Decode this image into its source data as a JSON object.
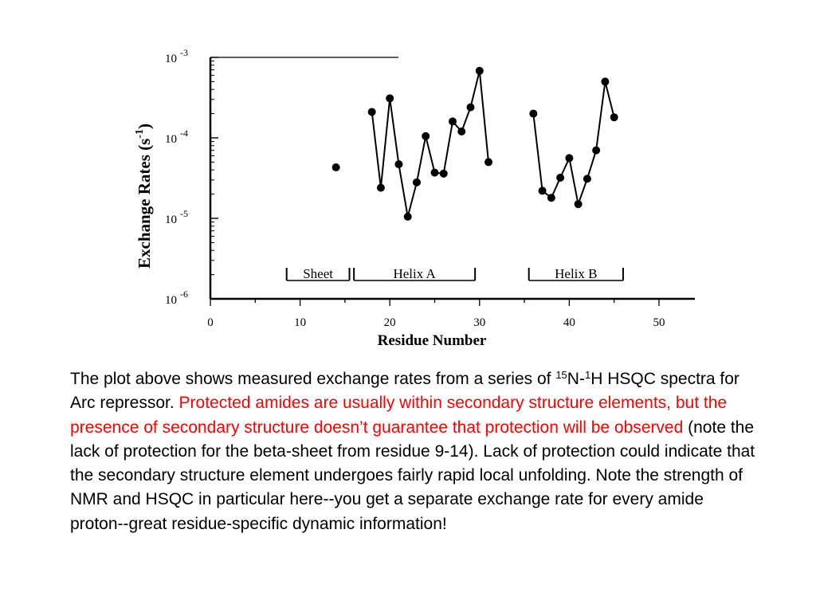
{
  "chart_data": {
    "type": "scatter",
    "ylabel": "Exchange Rates (s",
    "ylabel_sup": "-1",
    "ylabel_close": ")",
    "xlabel": "Residue Number",
    "xlim": [
      0,
      54
    ],
    "ylim": [
      1e-06,
      0.001
    ],
    "yscale": "log",
    "grid": false,
    "x_ticks": [
      0,
      10,
      20,
      30,
      40,
      50
    ],
    "y_ticks": [
      {
        "base": "10",
        "exp": "-3",
        "value": 0.001
      },
      {
        "base": "10",
        "exp": "-4",
        "value": 0.0001
      },
      {
        "base": "10",
        "exp": "-5",
        "value": 1e-05
      },
      {
        "base": "10",
        "exp": "-6",
        "value": 1e-06
      }
    ],
    "series": [
      {
        "points": [
          [
            14,
            4.3e-05
          ]
        ]
      },
      {
        "points": [
          [
            18,
            0.00021
          ],
          [
            19,
            2.4e-05
          ],
          [
            20,
            0.00031
          ],
          [
            21,
            4.7e-05
          ],
          [
            22,
            1.05e-05
          ],
          [
            23,
            2.8e-05
          ],
          [
            24,
            0.000105
          ],
          [
            25,
            3.7e-05
          ],
          [
            26,
            3.6e-05
          ],
          [
            27,
            0.00016
          ],
          [
            28,
            0.00012
          ],
          [
            29,
            0.00024
          ],
          [
            30,
            0.00068
          ],
          [
            31,
            5e-05
          ]
        ]
      },
      {
        "points": [
          [
            36,
            0.0002
          ],
          [
            37,
            2.2e-05
          ],
          [
            38,
            1.8e-05
          ],
          [
            39,
            3.2e-05
          ],
          [
            40,
            5.6e-05
          ],
          [
            41,
            1.5e-05
          ],
          [
            42,
            3.1e-05
          ],
          [
            43,
            7e-05
          ],
          [
            44,
            0.0005
          ],
          [
            45,
            0.00018
          ]
        ]
      }
    ],
    "annotations": [
      {
        "text": "Sheet",
        "from": 8.5,
        "to": 15.5
      },
      {
        "text": "Helix A",
        "from": 16,
        "to": 29.5
      },
      {
        "text": "Helix B",
        "from": 35.5,
        "to": 46
      }
    ]
  },
  "caption": {
    "part1": "The plot above shows measured exchange rates from a series of ",
    "sup1": "15",
    "part2": "N-",
    "sup2": "1",
    "part3": "H HSQC spectra for Arc repressor.  ",
    "red1": "Protected amides are usually within secondary structure elements,",
    "red2": " but the presence of secondary structure doesn’t guarantee that protection will be observed",
    "part4": " (note the lack of protection for the beta-sheet from residue 9-14).  Lack of protection could indicate that the secondary structure element undergoes fairly rapid local unfolding.  Note the strength of NMR and HSQC in particular here--you get a separate exchange rate for every amide proton--great residue-specific dynamic information!"
  }
}
